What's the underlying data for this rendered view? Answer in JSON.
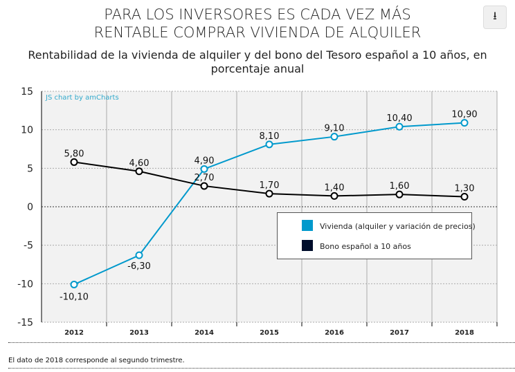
{
  "header": {
    "title_line1": "PARA LOS INVERSORES ES CADA VEZ MÁS",
    "title_line2": "RENTABLE COMPRAR VIVIENDA DE ALQUILER",
    "subtitle": "Rentabilidad de la vivienda de alquiler y del bono del Tesoro español a 10 años, en porcentaje anual",
    "download_icon": "download-icon"
  },
  "credit": "JS chart by amCharts",
  "footnote": "El dato de 2018 corresponde al segundo trimestre.",
  "chart_data": {
    "type": "line",
    "categories": [
      "2012",
      "2013",
      "2014",
      "2015",
      "2016",
      "2017",
      "2018"
    ],
    "ylim": [
      -15,
      15
    ],
    "yticks": [
      -15,
      -10,
      -5,
      0,
      5,
      10,
      15
    ],
    "grid": true,
    "legend_placement": "bottom-right",
    "series": [
      {
        "name": "Vivienda (alquiler y variación de precios)",
        "color": "#0099cc",
        "values": [
          -10.1,
          -6.3,
          4.9,
          8.1,
          9.1,
          10.4,
          10.9
        ],
        "labels": [
          "-10,10",
          "-6,30",
          "4,90",
          "8,10",
          "9,10",
          "10,40",
          "10,90"
        ]
      },
      {
        "name": "Bono español a 10 años",
        "color": "#000000",
        "legend_color": "#000d2b",
        "values": [
          5.8,
          4.6,
          2.7,
          1.7,
          1.4,
          1.6,
          1.3
        ],
        "labels": [
          "5,80",
          "4,60",
          "2,70",
          "1,70",
          "1,40",
          "1,60",
          "1,30"
        ]
      }
    ]
  }
}
